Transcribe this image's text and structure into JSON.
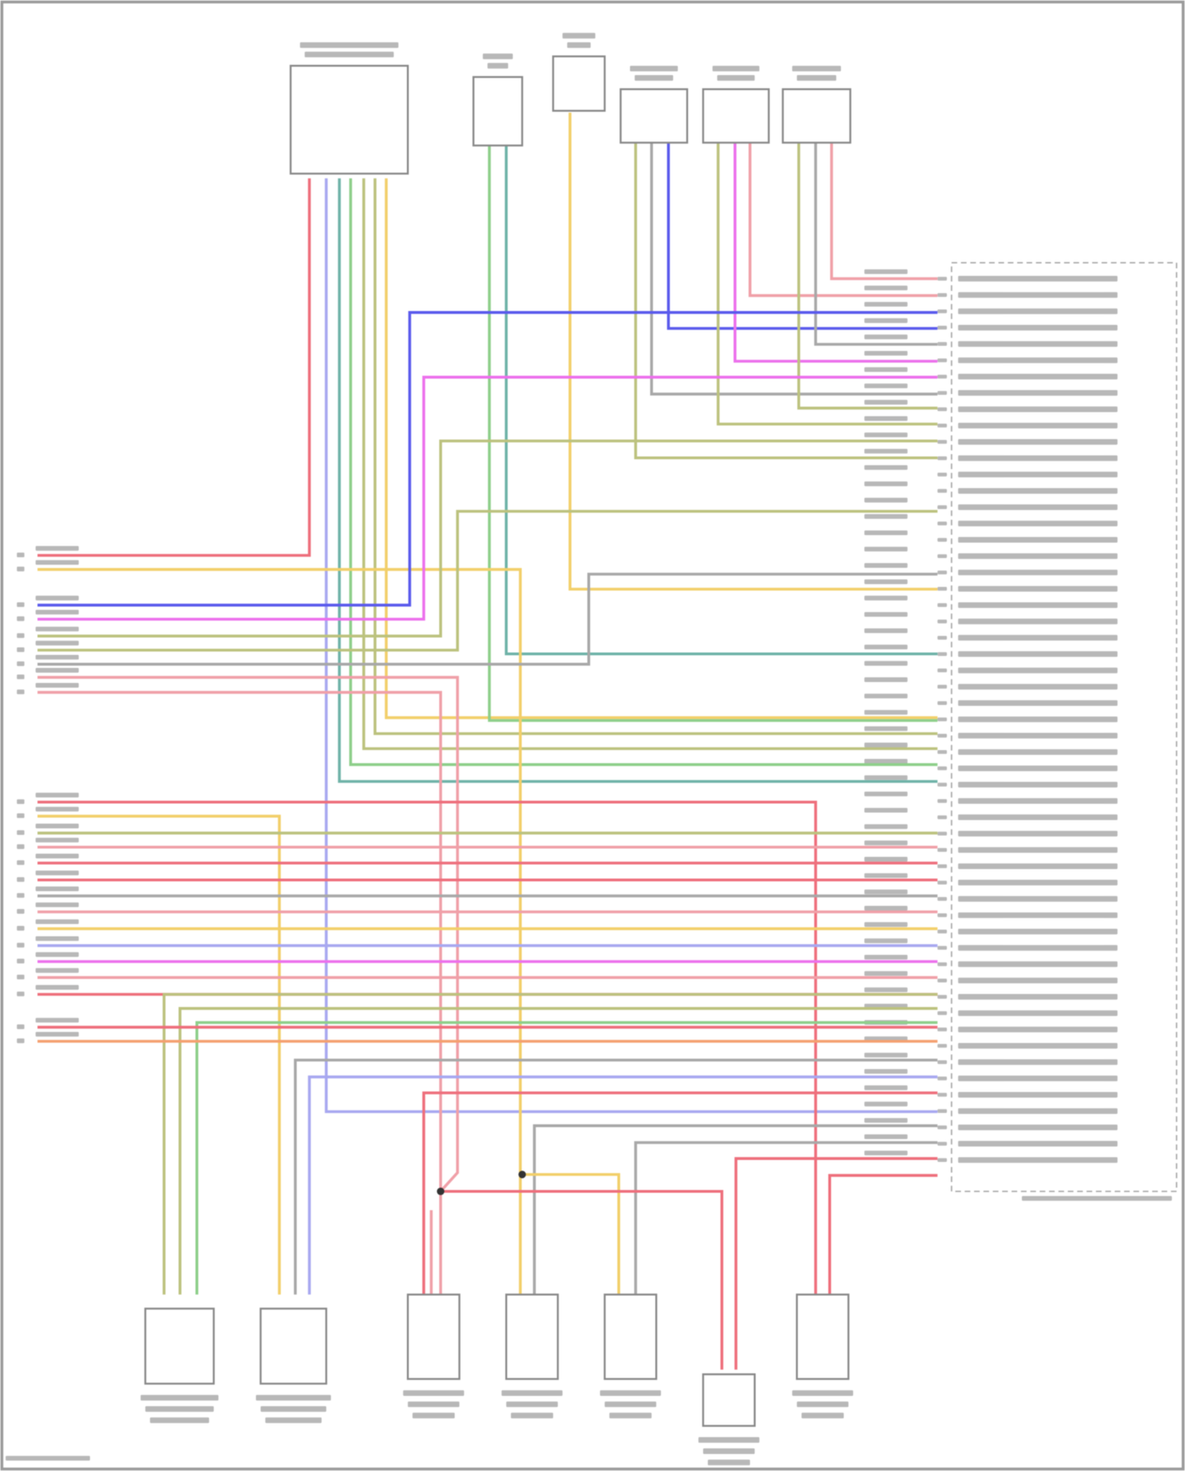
{
  "diagram": {
    "type": "wiring-diagram",
    "wire_colors": {
      "red": "#ee6f7c",
      "pink": "#f0a0a8",
      "blue": "#5a5aec",
      "magenta": "#ec70ec",
      "olive": "#bcc27e",
      "green": "#8ecf8a",
      "teal": "#6fb3a8",
      "yellow": "#f2cf6a",
      "gray": "#a8a8a8",
      "orange": "#f4a070",
      "lavender": "#a8a8f0"
    },
    "label_color": "#b8b8b8",
    "frame_color": "#9a9a9a"
  }
}
